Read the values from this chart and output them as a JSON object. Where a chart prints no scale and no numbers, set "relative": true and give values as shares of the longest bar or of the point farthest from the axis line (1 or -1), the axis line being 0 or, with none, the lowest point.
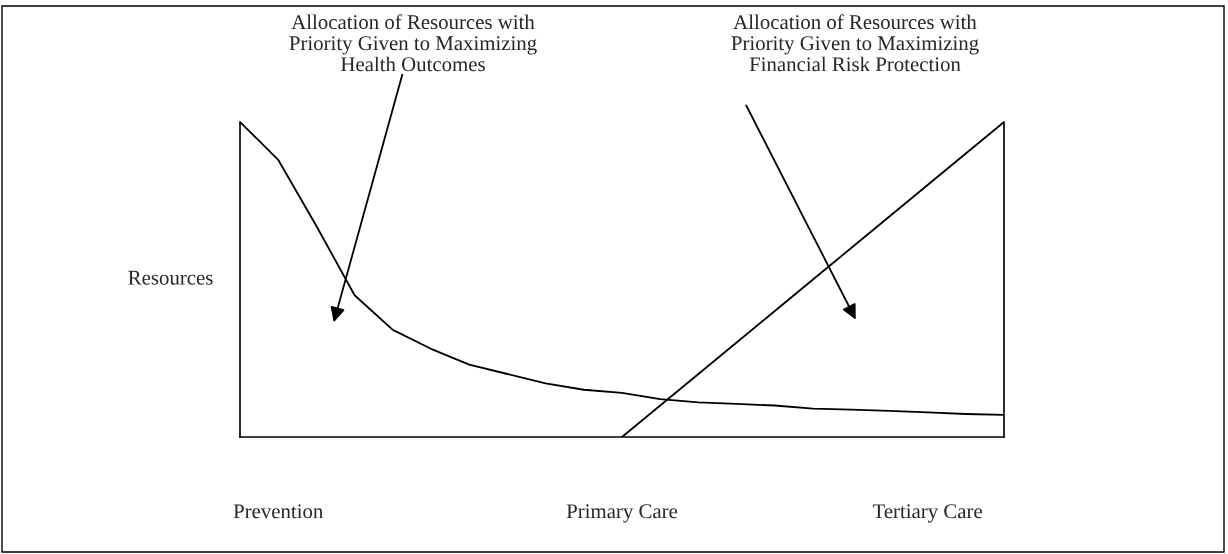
{
  "chart_data": {
    "type": "line",
    "relative": true,
    "ylabel": "Resources",
    "legend": false,
    "grid": false,
    "marker": "none",
    "line_style": "solid",
    "categories": [
      null,
      "Prevention",
      null,
      null,
      null,
      null,
      null,
      null,
      null,
      null,
      "Primary Care",
      null,
      null,
      null,
      null,
      null,
      null,
      null,
      "Tertiary Care",
      null,
      null
    ],
    "series": [
      {
        "color": "#000000",
        "values": [
          1.0,
          0.88,
          0.67,
          0.45,
          0.34,
          0.28,
          0.23,
          0.2,
          0.17,
          0.15,
          0.14,
          0.12,
          0.11,
          0.105,
          0.1,
          0.09,
          0.087,
          0.083,
          0.078,
          0.073,
          0.07
        ]
      },
      {
        "color": "#000000",
        "values": [
          null,
          null,
          null,
          null,
          null,
          null,
          null,
          null,
          null,
          null,
          0.0,
          0.1,
          0.2,
          0.3,
          0.4,
          0.5,
          0.6,
          0.7,
          0.8,
          0.9,
          1.0
        ]
      }
    ],
    "annotations": [
      "Allocation of Resources with\nPriority Given to Maximizing\nHealth Outcomes",
      "Allocation of Resources with\nPriority Given to Maximizing\nFinancial Risk Protection"
    ]
  }
}
